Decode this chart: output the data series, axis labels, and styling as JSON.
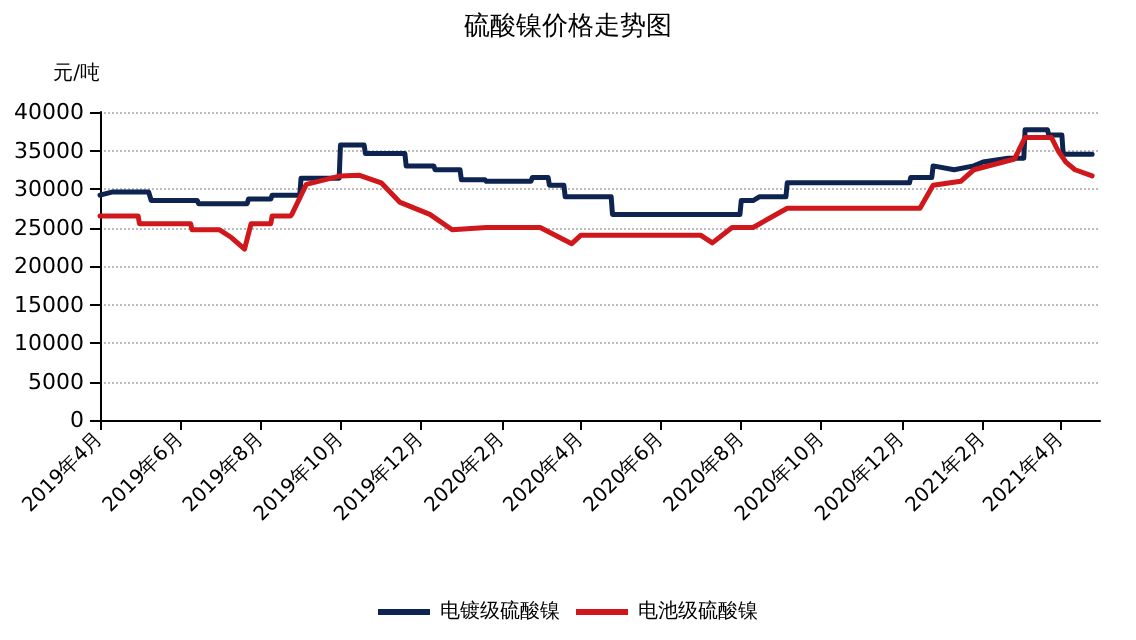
{
  "chart_data": {
    "type": "line",
    "title": "硫酸镍价格走势图",
    "ylabel": "元/吨",
    "ylim": [
      0,
      40000
    ],
    "yticks": [
      0,
      5000,
      10000,
      15000,
      20000,
      25000,
      30000,
      35000,
      40000
    ],
    "xlim": [
      "2019-04-01",
      "2021-05-01"
    ],
    "xticks": [
      {
        "value": "2019-04-01",
        "label": "2019年4月"
      },
      {
        "value": "2019-06-01",
        "label": "2019年6月"
      },
      {
        "value": "2019-08-01",
        "label": "2019年8月"
      },
      {
        "value": "2019-10-01",
        "label": "2019年10月"
      },
      {
        "value": "2019-12-01",
        "label": "2019年12月"
      },
      {
        "value": "2020-02-01",
        "label": "2020年2月"
      },
      {
        "value": "2020-04-01",
        "label": "2020年4月"
      },
      {
        "value": "2020-06-01",
        "label": "2020年6月"
      },
      {
        "value": "2020-08-01",
        "label": "2020年8月"
      },
      {
        "value": "2020-10-01",
        "label": "2020年10月"
      },
      {
        "value": "2020-12-01",
        "label": "2020年12月"
      },
      {
        "value": "2021-02-01",
        "label": "2021年2月"
      },
      {
        "value": "2021-04-01",
        "label": "2021年4月"
      }
    ],
    "grid": "y",
    "legend": "bottom",
    "marker": "none",
    "line_style": "solid",
    "series": [
      {
        "name": "电镀级硫酸镍",
        "color": "#0d2350",
        "x": [
          "2019-04-01",
          "2019-04-10",
          "2019-05-08",
          "2019-05-10",
          "2019-06-14",
          "2019-06-15",
          "2019-07-22",
          "2019-07-23",
          "2019-08-09",
          "2019-08-10",
          "2019-08-31",
          "2019-09-01",
          "2019-09-30",
          "2019-10-01",
          "2019-10-19",
          "2019-10-20",
          "2019-11-19",
          "2019-11-20",
          "2019-12-11",
          "2019-12-12",
          "2019-12-31",
          "2020-01-01",
          "2020-01-19",
          "2020-01-20",
          "2020-02-23",
          "2020-02-24",
          "2020-03-07",
          "2020-03-08",
          "2020-03-19",
          "2020-03-20",
          "2020-04-24",
          "2020-04-25",
          "2020-07-31",
          "2020-08-01",
          "2020-08-10",
          "2020-08-15",
          "2020-09-04",
          "2020-09-05",
          "2020-12-07",
          "2020-12-08",
          "2020-12-24",
          "2020-12-25",
          "2021-01-10",
          "2021-01-25",
          "2021-02-01",
          "2021-02-20",
          "2021-03-04",
          "2021-03-05",
          "2021-03-22",
          "2021-03-23",
          "2021-04-02",
          "2021-04-03",
          "2021-04-25"
        ],
        "values": [
          29200,
          29600,
          29600,
          28500,
          28500,
          28100,
          28100,
          28700,
          28700,
          29200,
          29200,
          31400,
          31400,
          35700,
          35700,
          34600,
          34600,
          33000,
          33000,
          32500,
          32500,
          31200,
          31200,
          31000,
          31000,
          31500,
          31500,
          30500,
          30500,
          29000,
          29000,
          26700,
          26700,
          28500,
          28500,
          29000,
          29000,
          30800,
          30800,
          31500,
          31500,
          33000,
          32500,
          33000,
          33500,
          34000,
          34000,
          37700,
          37700,
          37000,
          37000,
          34500,
          34500
        ]
      },
      {
        "name": "电池级硫酸镍",
        "color": "#d0181c",
        "x": [
          "2019-04-01",
          "2019-04-30",
          "2019-05-01",
          "2019-06-09",
          "2019-06-10",
          "2019-07-01",
          "2019-07-10",
          "2019-07-20",
          "2019-07-25",
          "2019-08-09",
          "2019-08-10",
          "2019-08-24",
          "2019-08-25",
          "2019-09-05",
          "2019-10-01",
          "2019-10-15",
          "2019-11-01",
          "2019-11-15",
          "2019-12-08",
          "2019-12-25",
          "2020-01-20",
          "2020-03-01",
          "2020-03-25",
          "2020-04-01",
          "2020-07-01",
          "2020-07-10",
          "2020-07-25",
          "2020-08-10",
          "2020-09-05",
          "2020-12-15",
          "2020-12-25",
          "2021-01-15",
          "2021-01-25",
          "2021-02-25",
          "2021-03-05",
          "2021-03-25",
          "2021-03-30",
          "2021-04-05",
          "2021-04-12",
          "2021-04-25"
        ],
        "values": [
          26500,
          26500,
          25500,
          25500,
          24700,
          24700,
          23700,
          22200,
          25500,
          25500,
          26500,
          26500,
          26700,
          30600,
          31700,
          31800,
          30800,
          28300,
          26700,
          24700,
          25000,
          25000,
          22900,
          24000,
          24000,
          23000,
          25000,
          25000,
          27500,
          27500,
          30500,
          31000,
          32500,
          33900,
          36700,
          36700,
          35000,
          33500,
          32500,
          31700
        ]
      }
    ]
  }
}
